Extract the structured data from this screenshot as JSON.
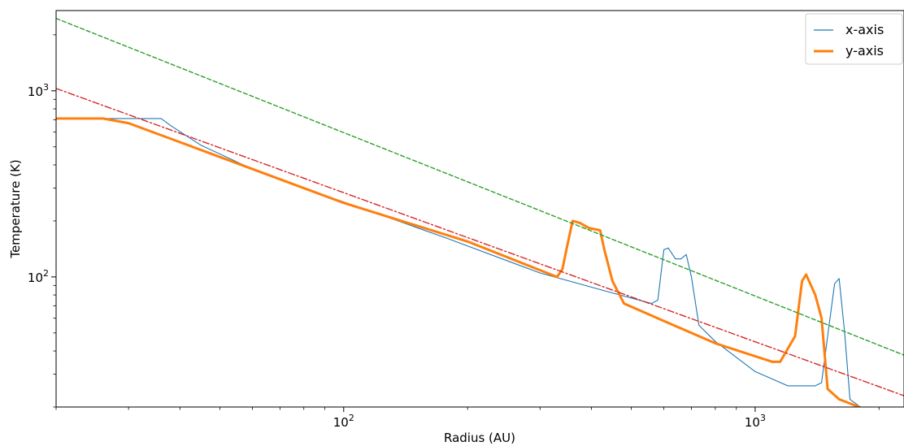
{
  "chart_data": {
    "type": "line",
    "xscale": "log",
    "yscale": "log",
    "xlim": [
      20,
      2300
    ],
    "ylim": [
      20,
      2700
    ],
    "xlabel": "Radius (AU)",
    "ylabel": "Temperature (K)",
    "xticks": [
      {
        "value": 100,
        "label": "10",
        "exp": "2"
      },
      {
        "value": 1000,
        "label": "10",
        "exp": "3"
      }
    ],
    "yticks": [
      {
        "value": 100,
        "label": "10",
        "exp": "2"
      },
      {
        "value": 1000,
        "label": "10",
        "exp": "3"
      }
    ],
    "legend": {
      "placement": "top-right"
    },
    "series": [
      {
        "name": "x-axis",
        "color": "#1f77b4",
        "style": "solid-thin",
        "points": [
          [
            20,
            710
          ],
          [
            36,
            710
          ],
          [
            38,
            650
          ],
          [
            45,
            510
          ],
          [
            60,
            380
          ],
          [
            80,
            300
          ],
          [
            120,
            220
          ],
          [
            180,
            160
          ],
          [
            300,
            105
          ],
          [
            450,
            82
          ],
          [
            560,
            72
          ],
          [
            580,
            75
          ],
          [
            600,
            140
          ],
          [
            615,
            143
          ],
          [
            640,
            125
          ],
          [
            660,
            125
          ],
          [
            680,
            132
          ],
          [
            700,
            100
          ],
          [
            730,
            55
          ],
          [
            800,
            45
          ],
          [
            1000,
            31
          ],
          [
            1200,
            26
          ],
          [
            1400,
            26
          ],
          [
            1450,
            27
          ],
          [
            1500,
            48
          ],
          [
            1560,
            92
          ],
          [
            1600,
            98
          ],
          [
            1650,
            50
          ],
          [
            1700,
            22
          ],
          [
            1800,
            20
          ],
          [
            2300,
            19
          ]
        ]
      },
      {
        "name": "y-axis",
        "color": "#ff7f0e",
        "style": "solid-thick",
        "points": [
          [
            20,
            710
          ],
          [
            26,
            710
          ],
          [
            30,
            670
          ],
          [
            40,
            530
          ],
          [
            60,
            380
          ],
          [
            100,
            250
          ],
          [
            200,
            155
          ],
          [
            330,
            100
          ],
          [
            340,
            110
          ],
          [
            350,
            150
          ],
          [
            360,
            200
          ],
          [
            375,
            195
          ],
          [
            395,
            183
          ],
          [
            420,
            178
          ],
          [
            430,
            140
          ],
          [
            450,
            95
          ],
          [
            480,
            72
          ],
          [
            600,
            58
          ],
          [
            800,
            44
          ],
          [
            1100,
            35
          ],
          [
            1150,
            35
          ],
          [
            1250,
            48
          ],
          [
            1300,
            95
          ],
          [
            1330,
            103
          ],
          [
            1400,
            80
          ],
          [
            1450,
            60
          ],
          [
            1500,
            25
          ],
          [
            1600,
            22
          ],
          [
            1900,
            19
          ],
          [
            2300,
            19
          ]
        ]
      },
      {
        "name": "",
        "color": "#2ca02c",
        "style": "dashed",
        "points": [
          [
            20,
            2450
          ],
          [
            2300,
            38
          ]
        ]
      },
      {
        "name": "",
        "color": "#d62728",
        "style": "dashdot",
        "points": [
          [
            20,
            1030
          ],
          [
            2300,
            23
          ]
        ]
      }
    ]
  }
}
